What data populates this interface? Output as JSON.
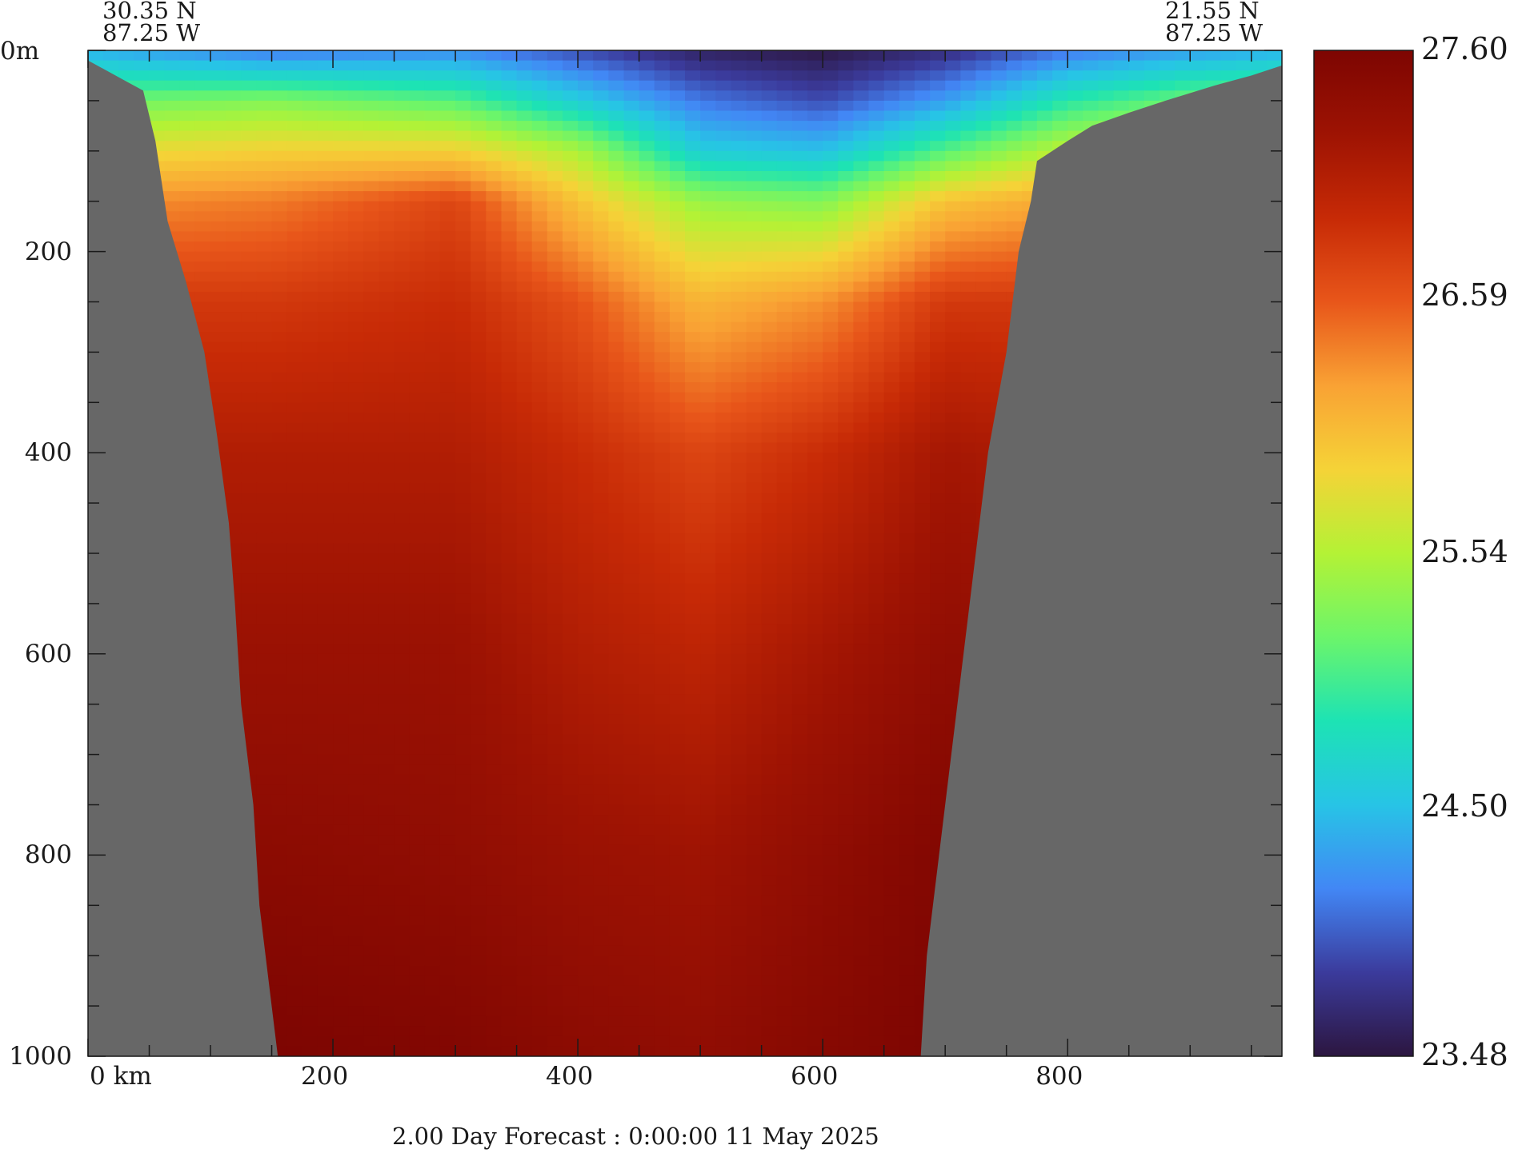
{
  "start_point": {
    "lat": "30.35 N",
    "lon": "87.25 W"
  },
  "end_point": {
    "lat": "21.55 N",
    "lon": "87.25 W"
  },
  "caption": "2.00 Day Forecast :  0:00:00  11 May 2025",
  "colors": {
    "land": "#676767",
    "colormap": [
      "#2c1640",
      "#3b3b9c",
      "#4287f5",
      "#27c4e6",
      "#1de3b4",
      "#6cf56a",
      "#b4f235",
      "#f5d337",
      "#f9a234",
      "#e8561a",
      "#c72a06",
      "#9e1303",
      "#7d0502"
    ]
  },
  "chart_data": {
    "type": "heatmap",
    "xlabel": "",
    "ylabel": "",
    "xlim": [
      0,
      975
    ],
    "ylim": [
      1000,
      0
    ],
    "x_ticks": [
      {
        "value": 0,
        "label": "0 km"
      },
      {
        "value": 200,
        "label": "200"
      },
      {
        "value": 400,
        "label": "400"
      },
      {
        "value": 600,
        "label": "600"
      },
      {
        "value": 800,
        "label": "800"
      }
    ],
    "y_ticks": [
      {
        "value": 0,
        "label": "0m"
      },
      {
        "value": 200,
        "label": "200"
      },
      {
        "value": 400,
        "label": "400"
      },
      {
        "value": 600,
        "label": "600"
      },
      {
        "value": 800,
        "label": "800"
      },
      {
        "value": 1000,
        "label": "1000"
      }
    ],
    "minor_x_ticks": [
      50,
      100,
      150,
      250,
      300,
      350,
      450,
      500,
      550,
      650,
      700,
      750,
      850,
      900,
      950
    ],
    "minor_y_ticks": [
      50,
      100,
      150,
      250,
      300,
      350,
      450,
      500,
      550,
      650,
      700,
      750,
      850,
      900,
      950
    ],
    "colorbar": {
      "min": 23.48,
      "max": 27.6,
      "tick_labels": [
        "27.60",
        "26.59",
        "25.54",
        "24.50",
        "23.48"
      ]
    },
    "bathymetry_left": [
      [
        0,
        10
      ],
      [
        30,
        30
      ],
      [
        45,
        40
      ],
      [
        55,
        90
      ],
      [
        65,
        170
      ],
      [
        80,
        230
      ],
      [
        95,
        300
      ],
      [
        105,
        380
      ],
      [
        115,
        470
      ],
      [
        120,
        550
      ],
      [
        125,
        650
      ],
      [
        135,
        750
      ],
      [
        140,
        850
      ],
      [
        150,
        950
      ],
      [
        155,
        1000
      ]
    ],
    "bathymetry_right": [
      [
        680,
        1000
      ],
      [
        685,
        900
      ],
      [
        695,
        800
      ],
      [
        705,
        700
      ],
      [
        715,
        600
      ],
      [
        725,
        500
      ],
      [
        735,
        400
      ],
      [
        750,
        300
      ],
      [
        760,
        200
      ],
      [
        770,
        150
      ],
      [
        775,
        110
      ],
      [
        800,
        90
      ],
      [
        820,
        75
      ],
      [
        850,
        62
      ],
      [
        880,
        50
      ],
      [
        920,
        35
      ],
      [
        950,
        25
      ],
      [
        975,
        15
      ]
    ],
    "temperature_field": [
      {
        "depth": 0,
        "x": [
          0,
          150,
          300,
          400,
          500,
          600,
          700,
          800,
          900,
          975
        ],
        "temp": [
          24.4,
          24.1,
          24.2,
          23.9,
          23.6,
          23.5,
          23.7,
          24.1,
          24.3,
          24.4
        ]
      },
      {
        "depth": 50,
        "x": [
          0,
          150,
          300,
          400,
          500,
          600,
          700,
          800,
          900,
          975
        ],
        "temp": [
          25.2,
          25.3,
          25.1,
          24.6,
          24.1,
          23.9,
          24.3,
          24.9,
          25.2,
          25.3
        ]
      },
      {
        "depth": 100,
        "x": [
          0,
          150,
          300,
          400,
          500,
          600,
          700,
          800,
          900,
          975
        ],
        "temp": [
          25.8,
          25.9,
          25.9,
          25.5,
          24.6,
          24.5,
          25.1,
          25.6,
          25.8,
          25.8
        ]
      },
      {
        "depth": 150,
        "x": [
          0,
          150,
          300,
          400,
          500,
          600,
          700,
          800,
          900,
          975
        ],
        "temp": [
          26.3,
          26.4,
          26.7,
          26.0,
          25.4,
          25.3,
          26.0,
          26.2,
          26.3,
          26.3
        ]
      },
      {
        "depth": 250,
        "x": [
          0,
          150,
          300,
          400,
          500,
          600,
          700,
          800,
          900,
          975
        ],
        "temp": [
          26.8,
          26.8,
          26.9,
          26.6,
          26.1,
          26.3,
          26.8,
          26.8,
          26.8,
          26.8
        ]
      },
      {
        "depth": 400,
        "x": [
          0,
          150,
          300,
          400,
          500,
          600,
          700,
          800,
          900,
          975
        ],
        "temp": [
          27.1,
          27.1,
          27.1,
          26.9,
          26.7,
          26.9,
          27.2,
          27.1,
          27.1,
          27.1
        ]
      },
      {
        "depth": 600,
        "x": [
          0,
          150,
          300,
          400,
          500,
          600,
          700,
          800,
          900,
          975
        ],
        "temp": [
          27.3,
          27.3,
          27.3,
          27.1,
          27.0,
          27.2,
          27.4,
          27.3,
          27.3,
          27.3
        ]
      },
      {
        "depth": 800,
        "x": [
          0,
          150,
          300,
          400,
          500,
          600,
          700,
          800,
          900,
          975
        ],
        "temp": [
          27.45,
          27.45,
          27.4,
          27.3,
          27.25,
          27.4,
          27.55,
          27.45,
          27.45,
          27.45
        ]
      },
      {
        "depth": 1000,
        "x": [
          0,
          150,
          300,
          400,
          500,
          600,
          700,
          800,
          900,
          975
        ],
        "temp": [
          27.6,
          27.6,
          27.55,
          27.45,
          27.4,
          27.5,
          27.6,
          27.6,
          27.6,
          27.6
        ]
      }
    ]
  }
}
